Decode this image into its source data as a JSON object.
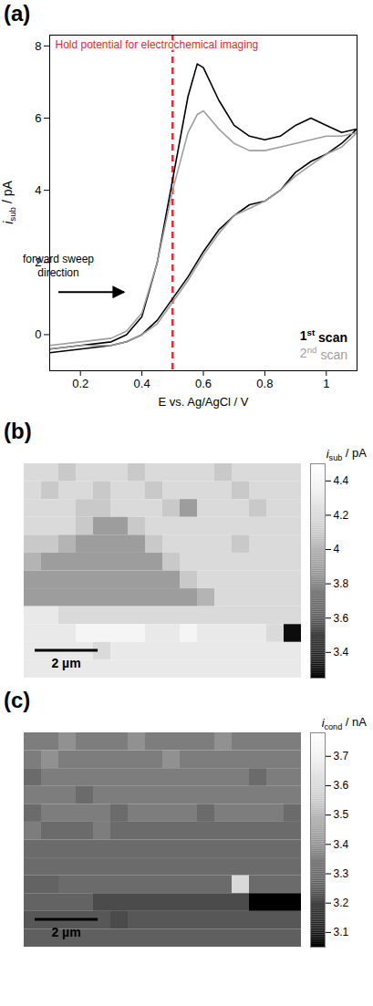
{
  "chart_data": [
    {
      "type": "line",
      "panel": "(a)",
      "x_label": "E vs. Ag/AgCl / V",
      "y_label": "isub / pA",
      "x": [
        0.1,
        0.2,
        0.3,
        0.35,
        0.4,
        0.45,
        0.5,
        0.55,
        0.58,
        0.6,
        0.65,
        0.7,
        0.75,
        0.8,
        0.85,
        0.9,
        0.95,
        1.0,
        1.05,
        1.1,
        1.05,
        1.0,
        0.95,
        0.9,
        0.85,
        0.8,
        0.75,
        0.7,
        0.65,
        0.6,
        0.55,
        0.5,
        0.45,
        0.4,
        0.35,
        0.3,
        0.2,
        0.1
      ],
      "series": [
        {
          "name": "1st scan",
          "color": "#000000",
          "line_style": "solid",
          "values": [
            -0.4,
            -0.3,
            -0.2,
            0,
            0.5,
            2.0,
            4.3,
            6.6,
            7.5,
            7.4,
            6.5,
            5.8,
            5.5,
            5.4,
            5.5,
            5.8,
            6.0,
            5.8,
            5.6,
            5.7,
            5.3,
            5.0,
            4.8,
            4.5,
            4.0,
            3.7,
            3.6,
            3.3,
            2.9,
            2.3,
            1.6,
            1.0,
            0.4,
            0.0,
            -0.2,
            -0.3,
            -0.4,
            -0.5
          ]
        },
        {
          "name": "2nd scan",
          "color": "#9e9e9e",
          "line_style": "solid",
          "values": [
            -0.3,
            -0.2,
            -0.1,
            0.1,
            0.6,
            2.0,
            4.0,
            5.6,
            6.1,
            6.2,
            5.7,
            5.3,
            5.1,
            5.1,
            5.2,
            5.3,
            5.4,
            5.5,
            5.5,
            5.6,
            5.2,
            5.0,
            4.7,
            4.4,
            4.0,
            3.7,
            3.5,
            3.3,
            2.8,
            2.2,
            1.5,
            0.9,
            0.3,
            0.0,
            -0.2,
            -0.3,
            -0.3,
            -0.4
          ]
        }
      ],
      "xlim": [
        0.1,
        1.1
      ],
      "xticks": [
        0.2,
        0.4,
        0.6,
        0.8,
        1
      ],
      "ylim": [
        -1,
        8.3
      ],
      "yticks": [
        0,
        2,
        4,
        6,
        8
      ],
      "annotations": [
        {
          "text": "Hold potential for electrochemical imaging",
          "x": 0.5,
          "color": "#e8282b",
          "line_style": "dashed"
        },
        {
          "text": "forward sweep direction"
        }
      ],
      "legend": "lower right"
    },
    {
      "type": "heatmap",
      "panel": "(b)",
      "color": "gray",
      "tick_labels": false,
      "xlim": [
        0,
        8.8
      ],
      "ylim": [
        0,
        6.8
      ],
      "cells": [
        [
          4.2,
          4.2,
          4.1,
          4.2,
          4.2,
          4.2,
          4.1,
          4.2,
          4.2,
          4.2,
          4.2,
          4.1,
          4.2,
          4.2,
          4.2,
          4.2
        ],
        [
          4.2,
          4.1,
          4.2,
          4.2,
          4.1,
          4.2,
          4.2,
          4.1,
          4.2,
          4.2,
          4.2,
          4.2,
          4.1,
          4.2,
          4.2,
          4.2
        ],
        [
          4.2,
          4.2,
          4.2,
          4.1,
          4.1,
          4.2,
          4.2,
          4.2,
          4.1,
          3.9,
          4.2,
          4.2,
          4.2,
          4.1,
          4.2,
          4.2
        ],
        [
          4.2,
          4.2,
          4.2,
          4.1,
          3.9,
          3.9,
          4.1,
          4.2,
          4.2,
          4.2,
          4.2,
          4.2,
          4.2,
          4.2,
          4.2,
          4.2
        ],
        [
          4.1,
          4.1,
          4.0,
          3.9,
          3.9,
          3.9,
          3.9,
          4.1,
          4.2,
          4.2,
          4.2,
          4.2,
          4.1,
          4.2,
          4.2,
          4.2
        ],
        [
          4.0,
          3.9,
          3.9,
          3.9,
          3.9,
          3.9,
          3.9,
          3.9,
          4.1,
          4.2,
          4.2,
          4.2,
          4.2,
          4.2,
          4.2,
          4.2
        ],
        [
          3.9,
          3.9,
          3.9,
          3.9,
          3.9,
          3.9,
          3.9,
          3.9,
          3.9,
          4.1,
          4.2,
          4.2,
          4.2,
          4.2,
          4.2,
          4.2
        ],
        [
          3.9,
          3.9,
          3.9,
          3.9,
          3.9,
          3.9,
          3.9,
          3.9,
          3.9,
          3.9,
          4.0,
          4.2,
          4.2,
          4.2,
          4.2,
          4.2
        ],
        [
          4.3,
          4.3,
          4.2,
          4.2,
          4.2,
          4.2,
          4.2,
          4.2,
          4.2,
          4.2,
          4.2,
          4.2,
          4.2,
          4.2,
          4.2,
          4.2
        ],
        [
          4.3,
          4.3,
          4.3,
          4.4,
          4.4,
          4.4,
          4.4,
          4.3,
          4.3,
          4.4,
          4.3,
          4.3,
          4.3,
          4.3,
          4.2,
          3.3
        ],
        [
          4.3,
          4.3,
          4.3,
          4.3,
          4.2,
          4.3,
          4.3,
          4.3,
          4.3,
          4.3,
          4.3,
          4.3,
          4.3,
          4.3,
          4.3,
          4.3
        ],
        [
          4.3,
          4.3,
          4.3,
          4.3,
          4.3,
          4.3,
          4.3,
          4.3,
          4.3,
          4.3,
          4.3,
          4.3,
          4.3,
          4.3,
          4.3,
          4.3
        ]
      ],
      "colorbar": {
        "label": "isub / pA",
        "range": [
          3.25,
          4.5
        ],
        "ticks": [
          3.4,
          3.6,
          3.8,
          4,
          4.2,
          4.4
        ]
      },
      "scale_bar": {
        "value": 2,
        "label": "2 µm"
      }
    },
    {
      "type": "heatmap",
      "panel": "(c)",
      "color": "gray",
      "tick_labels": false,
      "xlim": [
        0,
        8.8
      ],
      "ylim": [
        0,
        6.8
      ],
      "cells": [
        [
          3.35,
          3.35,
          3.4,
          3.35,
          3.35,
          3.35,
          3.4,
          3.35,
          3.35,
          3.35,
          3.35,
          3.4,
          3.35,
          3.35,
          3.35,
          3.35
        ],
        [
          3.35,
          3.4,
          3.35,
          3.35,
          3.35,
          3.35,
          3.35,
          3.35,
          3.4,
          3.35,
          3.35,
          3.35,
          3.35,
          3.35,
          3.35,
          3.35
        ],
        [
          3.3,
          3.35,
          3.35,
          3.35,
          3.35,
          3.35,
          3.35,
          3.35,
          3.35,
          3.35,
          3.35,
          3.35,
          3.35,
          3.3,
          3.35,
          3.35
        ],
        [
          3.35,
          3.35,
          3.35,
          3.3,
          3.35,
          3.35,
          3.35,
          3.35,
          3.35,
          3.35,
          3.35,
          3.35,
          3.35,
          3.35,
          3.35,
          3.35
        ],
        [
          3.3,
          3.35,
          3.35,
          3.35,
          3.35,
          3.3,
          3.35,
          3.35,
          3.35,
          3.35,
          3.3,
          3.35,
          3.35,
          3.35,
          3.35,
          3.3
        ],
        [
          3.35,
          3.3,
          3.3,
          3.3,
          3.35,
          3.3,
          3.3,
          3.3,
          3.3,
          3.3,
          3.3,
          3.3,
          3.3,
          3.3,
          3.3,
          3.3
        ],
        [
          3.3,
          3.3,
          3.3,
          3.3,
          3.3,
          3.3,
          3.3,
          3.3,
          3.3,
          3.3,
          3.3,
          3.3,
          3.3,
          3.3,
          3.3,
          3.3
        ],
        [
          3.3,
          3.3,
          3.3,
          3.3,
          3.3,
          3.3,
          3.3,
          3.3,
          3.3,
          3.3,
          3.3,
          3.3,
          3.3,
          3.3,
          3.3,
          3.3
        ],
        [
          3.28,
          3.28,
          3.3,
          3.3,
          3.3,
          3.3,
          3.3,
          3.3,
          3.3,
          3.3,
          3.3,
          3.3,
          3.6,
          3.3,
          3.3,
          3.3
        ],
        [
          3.28,
          3.28,
          3.28,
          3.28,
          3.22,
          3.22,
          3.22,
          3.22,
          3.22,
          3.22,
          3.22,
          3.22,
          3.22,
          3.05,
          3.05,
          3.05
        ],
        [
          3.25,
          3.25,
          3.25,
          3.25,
          3.25,
          3.22,
          3.25,
          3.25,
          3.25,
          3.25,
          3.25,
          3.25,
          3.25,
          3.25,
          3.25,
          3.25
        ],
        [
          3.27,
          3.27,
          3.27,
          3.27,
          3.27,
          3.27,
          3.27,
          3.27,
          3.27,
          3.27,
          3.27,
          3.27,
          3.27,
          3.27,
          3.27,
          3.27
        ]
      ],
      "colorbar": {
        "label": "icond / nA",
        "range": [
          3.05,
          3.78
        ],
        "ticks": [
          3.1,
          3.2,
          3.3,
          3.4,
          3.5,
          3.6,
          3.7
        ]
      },
      "scale_bar": {
        "value": 2,
        "label": "2 µm"
      }
    }
  ]
}
